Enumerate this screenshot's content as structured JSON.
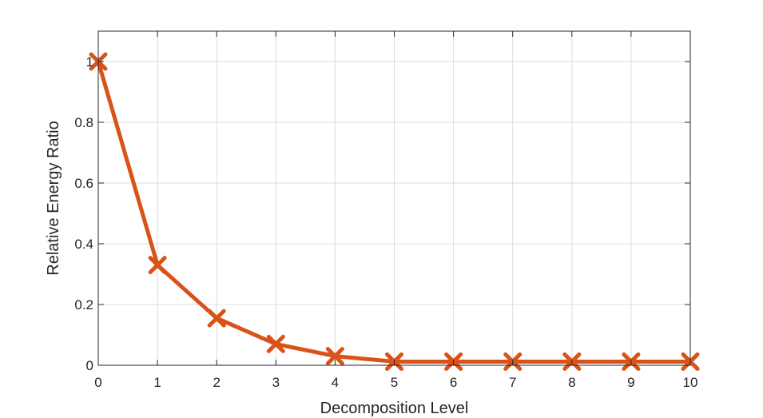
{
  "chart_data": {
    "type": "line",
    "title": "",
    "xlabel": "Decomposition Level",
    "ylabel": "Relative Energy Ratio",
    "xlim": [
      0,
      10
    ],
    "ylim": [
      0,
      1.1
    ],
    "xticks": [
      0,
      1,
      2,
      3,
      4,
      5,
      6,
      7,
      8,
      9,
      10
    ],
    "yticks": [
      0,
      0.2,
      0.4,
      0.6,
      0.8,
      1
    ],
    "xtick_labels": [
      "0",
      "1",
      "2",
      "3",
      "4",
      "5",
      "6",
      "7",
      "8",
      "9",
      "10"
    ],
    "ytick_labels": [
      "0",
      "0.2",
      "0.4",
      "0.6",
      "0.8",
      "1"
    ],
    "grid": true,
    "marker": "x",
    "series": [
      {
        "color": "#D95319",
        "x": [
          0,
          1,
          2,
          3,
          4,
          5,
          6,
          7,
          8,
          9,
          10
        ],
        "y": [
          1.0,
          0.33,
          0.155,
          0.07,
          0.03,
          0.012,
          0.012,
          0.012,
          0.012,
          0.012,
          0.012
        ]
      }
    ]
  }
}
